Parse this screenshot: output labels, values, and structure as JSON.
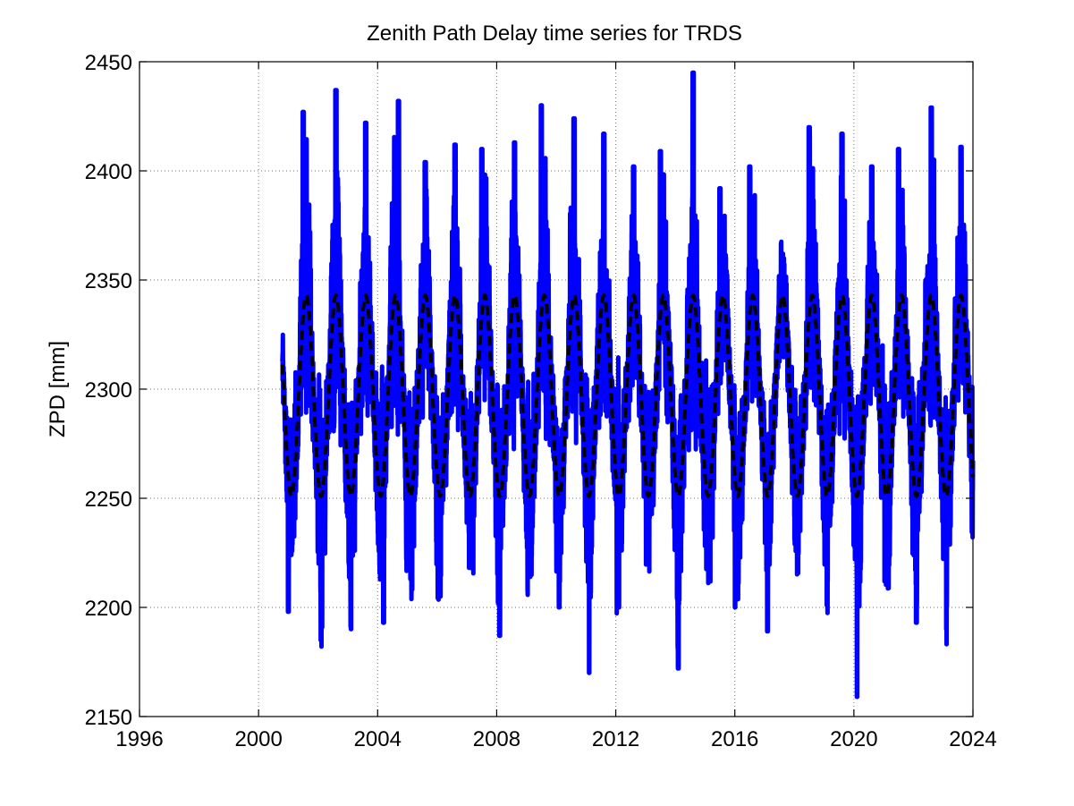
{
  "chart_data": {
    "type": "line",
    "title": "Zenith Path Delay time series for TRDS",
    "xlabel": "",
    "ylabel": "ZPD [mm]",
    "xlim": [
      1996,
      2024
    ],
    "ylim": [
      2150,
      2450
    ],
    "xticks": [
      1996,
      2000,
      2004,
      2008,
      2012,
      2016,
      2020,
      2024
    ],
    "yticks": [
      2150,
      2200,
      2250,
      2300,
      2350,
      2400,
      2450
    ],
    "grid": true,
    "series": [
      {
        "style": "solid",
        "color": "#0000ff",
        "x_start": 2000.8,
        "x_end": 2024.0,
        "y_min": 2159,
        "y_max": 2445,
        "annual_peak_years": [
          2001.5,
          2002.6,
          2003.6,
          2004.7,
          2005.6,
          2006.6,
          2007.5,
          2008.6,
          2009.5,
          2010.6,
          2011.6,
          2012.6,
          2013.5,
          2014.6,
          2015.5,
          2016.5,
          2017.6,
          2018.5,
          2019.6,
          2020.6,
          2021.5,
          2022.6,
          2023.6
        ],
        "annual_peak_values": [
          2427,
          2437,
          2422,
          2432,
          2404,
          2412,
          2410,
          2413,
          2430,
          2424,
          2417,
          2402,
          2409,
          2445,
          2392,
          2402,
          2362,
          2420,
          2417,
          2402,
          2410,
          2429,
          2411
        ],
        "annual_trough_values": [
          2198,
          2185,
          2190,
          2193,
          2177,
          2205,
          2185,
          2187,
          2193,
          2200,
          2170,
          2200,
          2201,
          2172,
          2188,
          2200,
          2189,
          2200,
          2201,
          2159,
          2183,
          2193,
          2190
        ]
      },
      {
        "style": "dashed",
        "color": "#000000",
        "x_start": 2000.8,
        "x_end": 2024.0,
        "mean": 2297,
        "amplitude": 46,
        "period_years": 1,
        "peak_phase": 0.6
      }
    ]
  }
}
